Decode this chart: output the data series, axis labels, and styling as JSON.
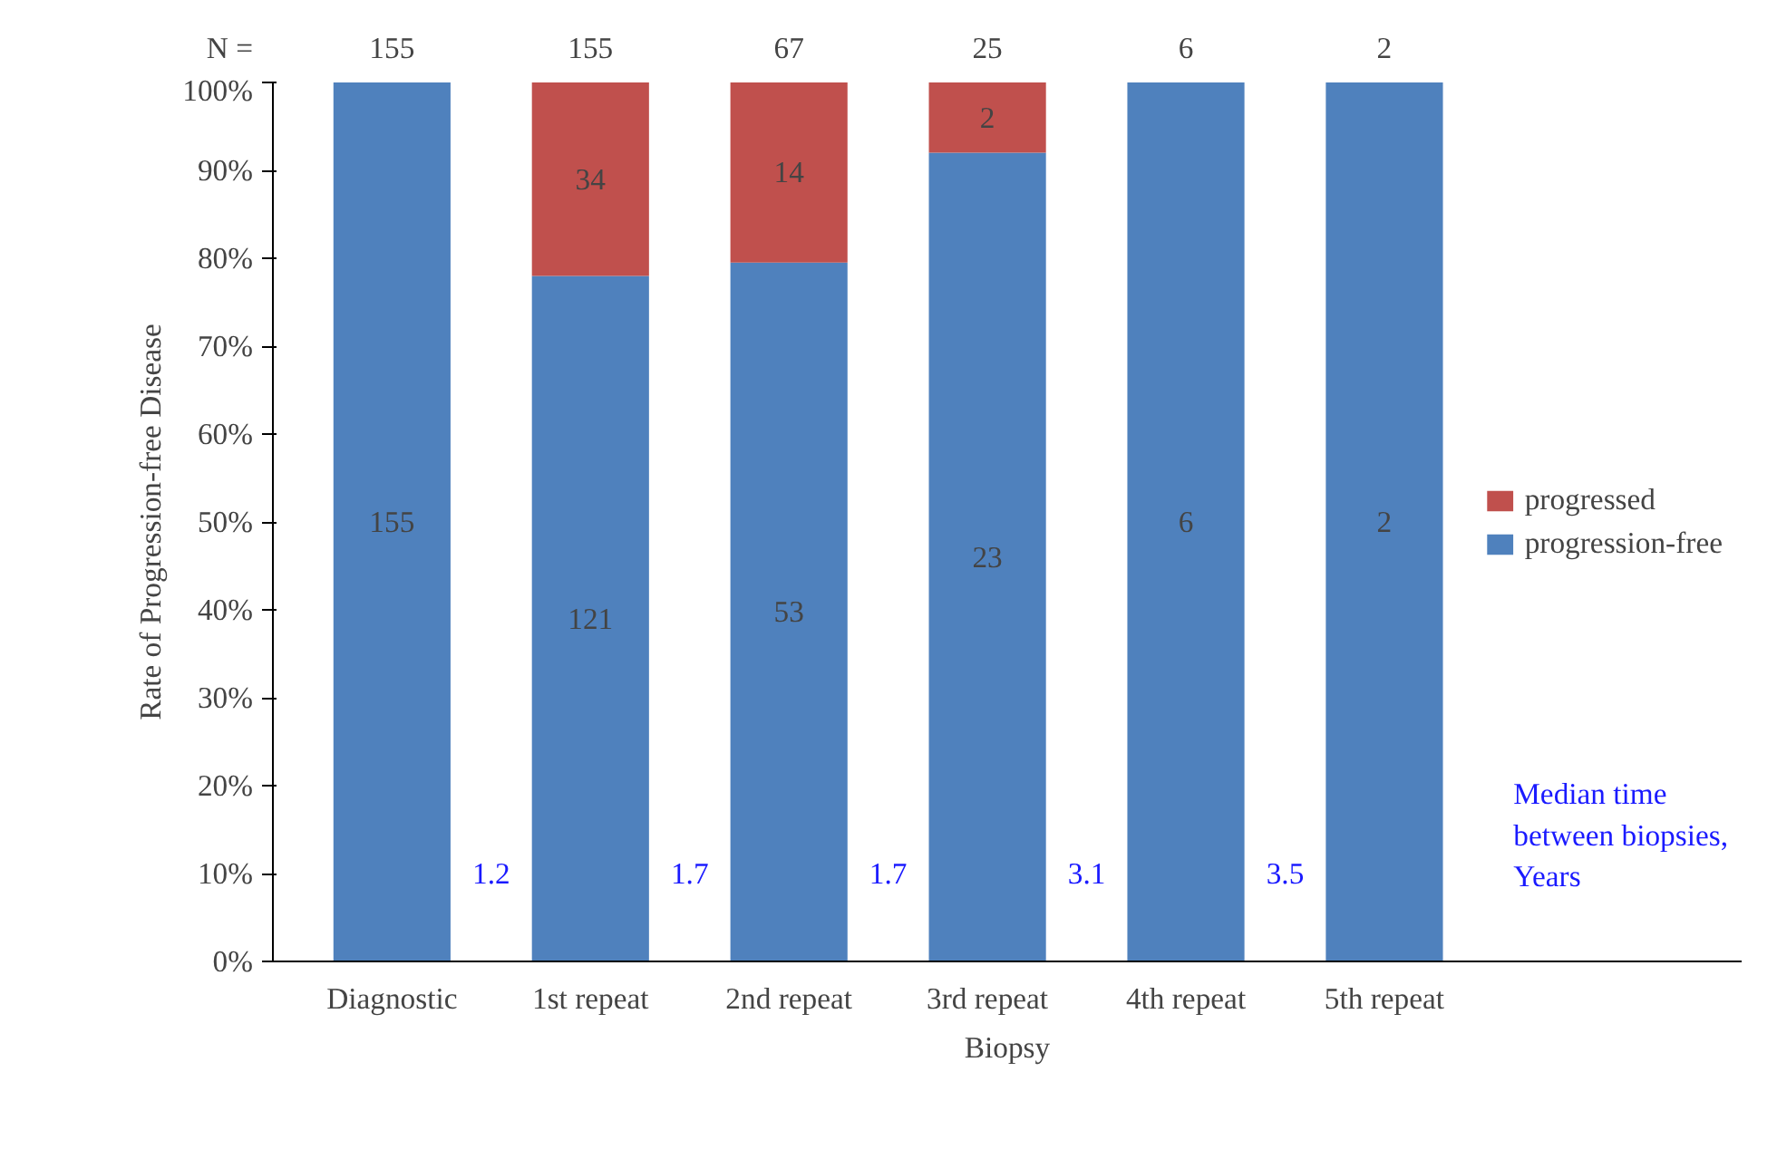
{
  "chart_data": {
    "type": "bar",
    "stacked": true,
    "xlabel": "Biopsy",
    "ylabel": "Rate of Progression-free Disease",
    "categories": [
      "Diagnostic",
      "1st repeat",
      "2nd repeat",
      "3rd repeat",
      "4th repeat",
      "5th repeat"
    ],
    "series": [
      {
        "name": "progression-free",
        "color": "#4f81bd",
        "values": [
          100,
          78,
          79.5,
          92,
          100,
          100
        ]
      },
      {
        "name": "progressed",
        "color": "#c0504d",
        "values": [
          0,
          22,
          20.5,
          8,
          0,
          0
        ]
      }
    ],
    "ylim": [
      0,
      100
    ],
    "yticks": [
      {
        "value": 0,
        "label": "0%"
      },
      {
        "value": 10,
        "label": "10%"
      },
      {
        "value": 20,
        "label": "20%"
      },
      {
        "value": 30,
        "label": "30%"
      },
      {
        "value": 40,
        "label": "40%"
      },
      {
        "value": 50,
        "label": "50%"
      },
      {
        "value": 60,
        "label": "60%"
      },
      {
        "value": 70,
        "label": "70%"
      },
      {
        "value": 80,
        "label": "80%"
      },
      {
        "value": 90,
        "label": "90%"
      },
      {
        "value": 100,
        "label": "100%"
      }
    ],
    "grid": false,
    "legend": "right",
    "annotations": [
      "N =",
      "155",
      "155",
      "67",
      "25",
      "6",
      "2",
      "1.2",
      "1.7",
      "1.7",
      "3.1",
      "3.5",
      "Median time\nbetween biopsies,\nYears",
      "155",
      "121",
      "53",
      "23",
      "6",
      "2",
      "34",
      "14",
      "2"
    ]
  }
}
